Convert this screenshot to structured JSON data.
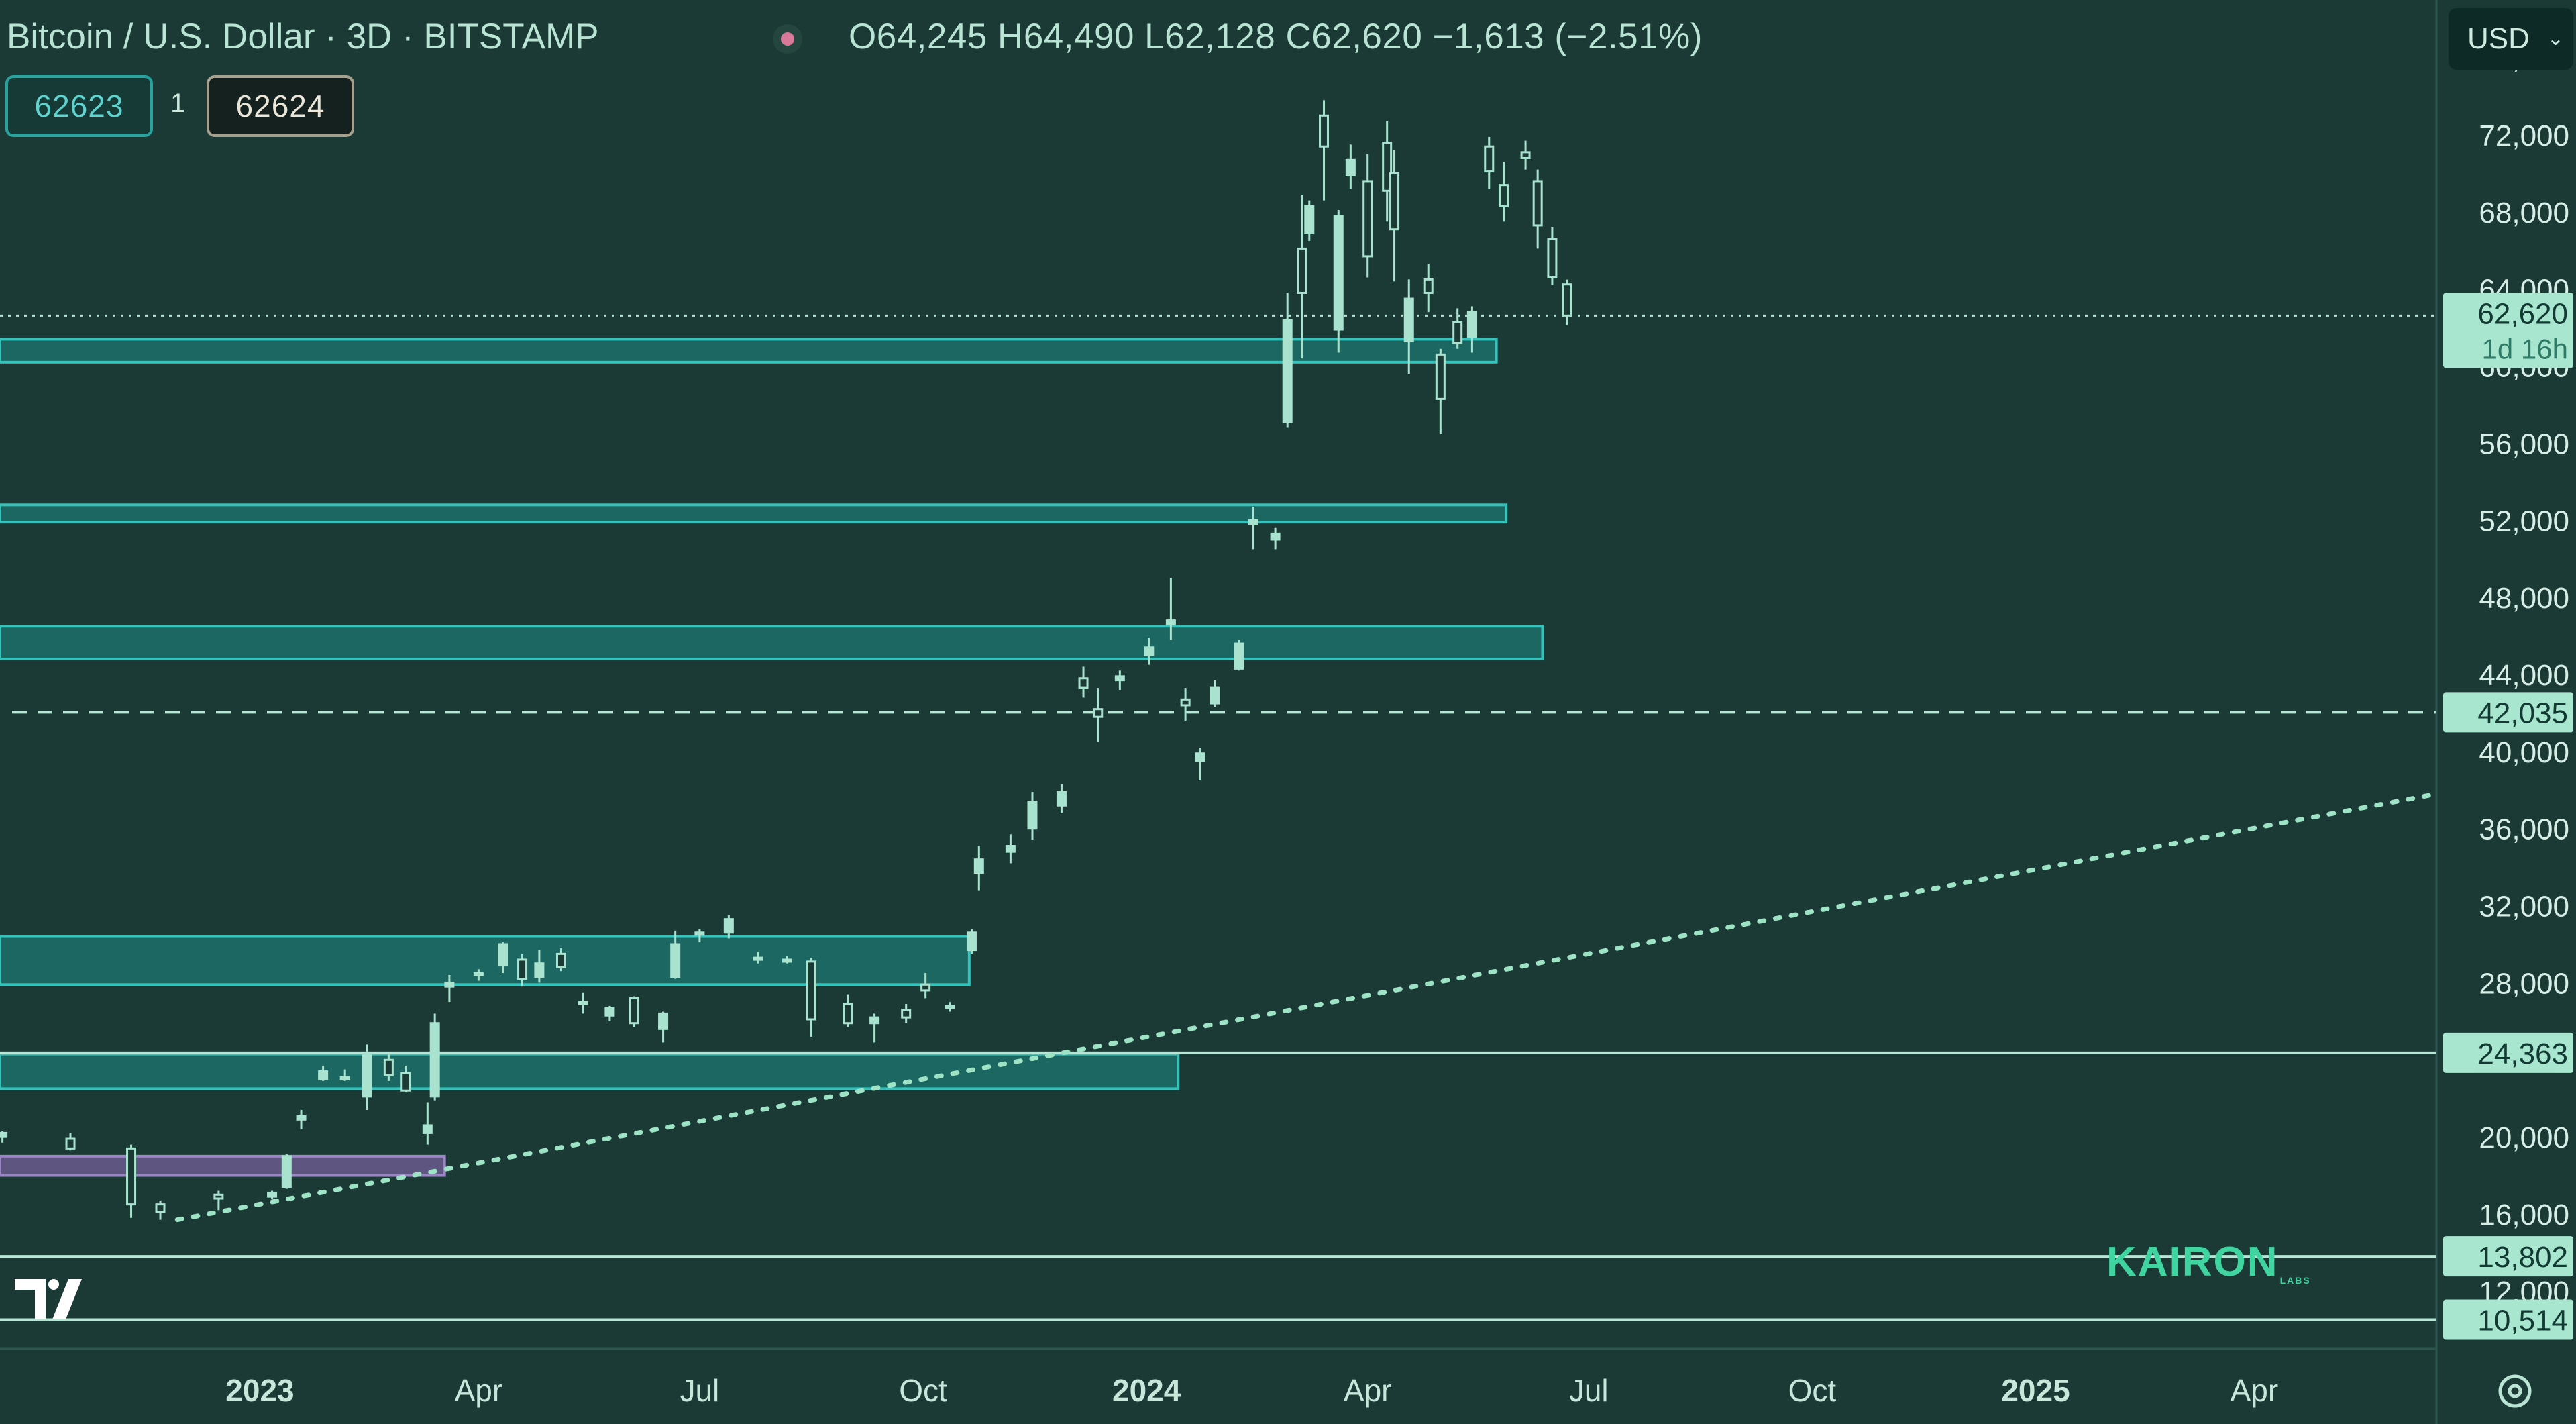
{
  "header": {
    "title": "Bitcoin / U.S. Dollar · 3D · BITSTAMP",
    "ohlc": "O64,245  H64,490  L62,128  C62,620  −1,613 (−2.51%)"
  },
  "trading": {
    "bid": "62623",
    "quantity": "1",
    "ask": "62624"
  },
  "currency": {
    "label": "USD",
    "icon": "chevron-down-icon"
  },
  "watermark": {
    "brand": "KAIRON",
    "sub": "LABS"
  },
  "icons": {
    "logo": "tradingview-logo",
    "settings": "gear-icon",
    "status": "status-dot-icon"
  },
  "colors": {
    "background": "#1b3a35",
    "candle": "#a9e3cf",
    "zone": "#1f8c86",
    "zone_border": "#35c2bb",
    "zone_purple": "#7a62a3",
    "line": "#b8e6d6",
    "trend": "#9ee3c6",
    "price_label_bg": "#a9e6cf",
    "price_label_text": "#123a33"
  },
  "chart_data": {
    "type": "candlestick",
    "title": "Bitcoin / U.S. Dollar · 3D · BITSTAMP",
    "y_scale": "linear",
    "ylim": [
      9000,
      79000
    ],
    "xlim": [
      "2022-09-16",
      "2025-06-15"
    ],
    "x_ticks": [
      {
        "date": "2023-01-01",
        "label": "2023",
        "bold": true
      },
      {
        "date": "2023-04-01",
        "label": "Apr"
      },
      {
        "date": "2023-07-01",
        "label": "Jul"
      },
      {
        "date": "2023-10-01",
        "label": "Oct"
      },
      {
        "date": "2024-01-01",
        "label": "2024",
        "bold": true
      },
      {
        "date": "2024-04-01",
        "label": "Apr"
      },
      {
        "date": "2024-07-01",
        "label": "Jul"
      },
      {
        "date": "2024-10-01",
        "label": "Oct"
      },
      {
        "date": "2025-01-01",
        "label": "2025",
        "bold": true
      },
      {
        "date": "2025-04-01",
        "label": "Apr"
      }
    ],
    "y_ticks": [
      {
        "value": 12000,
        "label": "12,000"
      },
      {
        "value": 16000,
        "label": "16,000"
      },
      {
        "value": 20000,
        "label": "20,000"
      },
      {
        "value": 28000,
        "label": "28,000"
      },
      {
        "value": 32000,
        "label": "32,000"
      },
      {
        "value": 36000,
        "label": "36,000"
      },
      {
        "value": 40000,
        "label": "40,000"
      },
      {
        "value": 44000,
        "label": "44,000"
      },
      {
        "value": 48000,
        "label": "48,000"
      },
      {
        "value": 52000,
        "label": "52,000"
      },
      {
        "value": 56000,
        "label": "56,000"
      },
      {
        "value": 60000,
        "label": "60,000"
      },
      {
        "value": 64000,
        "label": "64,000"
      },
      {
        "value": 68000,
        "label": "68,000"
      },
      {
        "value": 72000,
        "label": "72,000"
      },
      {
        "value": 76000,
        "label": "76,000"
      }
    ],
    "price_labels": [
      {
        "value": 62620,
        "label": "62,620",
        "sub": "1d 16h",
        "line": "dotted"
      },
      {
        "value": 42035,
        "label": "42,035",
        "line": "dashed"
      },
      {
        "value": 24363,
        "label": "24,363",
        "line": "solid"
      },
      {
        "value": 13802,
        "label": "13,802",
        "line": "solid"
      },
      {
        "value": 10514,
        "label": "10,514",
        "line": "solid"
      }
    ],
    "zones": [
      {
        "from": "2022-09-16",
        "to": "2024-05-24",
        "low": 60200,
        "high": 61400,
        "color": "teal"
      },
      {
        "from": "2022-09-16",
        "to": "2024-05-28",
        "low": 51900,
        "high": 52800,
        "color": "teal"
      },
      {
        "from": "2022-09-16",
        "to": "2024-06-12",
        "low": 44800,
        "high": 46500,
        "color": "teal"
      },
      {
        "from": "2022-09-16",
        "to": "2023-10-20",
        "low": 27900,
        "high": 30400,
        "color": "teal"
      },
      {
        "from": "2022-09-16",
        "to": "2024-01-14",
        "low": 22500,
        "high": 24300,
        "color": "teal"
      },
      {
        "from": "2022-09-16",
        "to": "2023-03-18",
        "low": 18000,
        "high": 19000,
        "color": "purple"
      }
    ],
    "trendline": {
      "from": {
        "date": "2022-11-28",
        "value": 15700
      },
      "to": {
        "date": "2025-06-15",
        "value": 37800
      },
      "style": "dotted"
    },
    "candles": [
      [
        "2022-09-17",
        20000,
        20300,
        19700,
        20200
      ],
      [
        "2022-10-15",
        19900,
        20200,
        19300,
        19400
      ],
      [
        "2022-11-09",
        19400,
        19600,
        15800,
        16500
      ],
      [
        "2022-11-21",
        16500,
        16700,
        15700,
        16100
      ],
      [
        "2022-12-15",
        17000,
        17200,
        16200,
        16800
      ],
      [
        "2023-01-06",
        16900,
        17200,
        16800,
        17100
      ],
      [
        "2023-01-12",
        17400,
        19100,
        17300,
        19000
      ],
      [
        "2023-01-18",
        20900,
        21400,
        20400,
        21100
      ],
      [
        "2023-01-27",
        23000,
        23700,
        22900,
        23400
      ],
      [
        "2023-02-05",
        23000,
        23500,
        22900,
        23100
      ],
      [
        "2023-02-14",
        22100,
        24800,
        21400,
        24300
      ],
      [
        "2023-02-23",
        24000,
        24300,
        22900,
        23200
      ],
      [
        "2023-03-02",
        23300,
        23700,
        22300,
        22400
      ],
      [
        "2023-03-11",
        20200,
        21800,
        19600,
        20600
      ],
      [
        "2023-03-14",
        22100,
        26400,
        21900,
        25900
      ],
      [
        "2023-03-20",
        27800,
        28400,
        27000,
        28000
      ],
      [
        "2023-04-01",
        28400,
        28700,
        28100,
        28500
      ],
      [
        "2023-04-11",
        28900,
        30100,
        28500,
        30000
      ],
      [
        "2023-04-19",
        29200,
        29500,
        27800,
        28200
      ],
      [
        "2023-04-26",
        28300,
        29700,
        28000,
        29000
      ],
      [
        "2023-05-05",
        29500,
        29800,
        28600,
        28800
      ],
      [
        "2023-05-14",
        27000,
        27500,
        26400,
        26900
      ],
      [
        "2023-05-25",
        26300,
        26800,
        26000,
        26700
      ],
      [
        "2023-06-04",
        27200,
        27300,
        25700,
        25900
      ],
      [
        "2023-06-16",
        25600,
        26500,
        24900,
        26400
      ],
      [
        "2023-06-21",
        28300,
        30700,
        28200,
        30000
      ],
      [
        "2023-07-01",
        30500,
        30800,
        30100,
        30600
      ],
      [
        "2023-07-13",
        30600,
        31500,
        30300,
        31300
      ],
      [
        "2023-07-25",
        29200,
        29600,
        29000,
        29300
      ],
      [
        "2023-08-06",
        29100,
        29400,
        29000,
        29200
      ],
      [
        "2023-08-16",
        29100,
        29300,
        25200,
        26100
      ],
      [
        "2023-08-31",
        26900,
        27400,
        25700,
        25900
      ],
      [
        "2023-09-11",
        25900,
        26400,
        24900,
        26200
      ],
      [
        "2023-09-24",
        26600,
        26900,
        25900,
        26200
      ],
      [
        "2023-10-02",
        27900,
        28500,
        27200,
        27600
      ],
      [
        "2023-10-12",
        26800,
        27000,
        26500,
        26800
      ],
      [
        "2023-10-21",
        29700,
        30800,
        29500,
        30600
      ],
      [
        "2023-10-24",
        33700,
        35100,
        32800,
        34400
      ],
      [
        "2023-11-06",
        34800,
        35700,
        34200,
        35100
      ],
      [
        "2023-11-15",
        36000,
        37900,
        35400,
        37400
      ],
      [
        "2023-11-27",
        37200,
        38300,
        36800,
        37900
      ],
      [
        "2023-12-06",
        43800,
        44400,
        42800,
        43300
      ],
      [
        "2023-12-12",
        42200,
        43300,
        40500,
        41800
      ],
      [
        "2023-12-21",
        43700,
        44200,
        43200,
        43900
      ],
      [
        "2024-01-02",
        45000,
        45900,
        44500,
        45400
      ],
      [
        "2024-01-11",
        46600,
        49000,
        45800,
        46800
      ],
      [
        "2024-01-17",
        42700,
        43300,
        41600,
        42400
      ],
      [
        "2024-01-23",
        39500,
        40200,
        38500,
        39900
      ],
      [
        "2024-01-29",
        42500,
        43700,
        42300,
        43300
      ],
      [
        "2024-02-08",
        44300,
        45800,
        44200,
        45600
      ],
      [
        "2024-02-14",
        51800,
        52700,
        50500,
        52000
      ],
      [
        "2024-02-23",
        51000,
        51600,
        50500,
        51300
      ],
      [
        "2024-02-28",
        57100,
        63800,
        56800,
        62400
      ],
      [
        "2024-03-05",
        66100,
        68900,
        60400,
        63800
      ],
      [
        "2024-03-08",
        66900,
        68600,
        66500,
        68300
      ],
      [
        "2024-03-14",
        73000,
        73800,
        68600,
        71400
      ],
      [
        "2024-03-20",
        61900,
        68100,
        60700,
        67800
      ],
      [
        "2024-03-25",
        69900,
        71500,
        69200,
        70700
      ],
      [
        "2024-04-01",
        69600,
        71000,
        64600,
        65700
      ],
      [
        "2024-04-09",
        71600,
        72700,
        67500,
        69100
      ],
      [
        "2024-04-12",
        70000,
        71200,
        64400,
        67100
      ],
      [
        "2024-04-18",
        61300,
        64500,
        59600,
        63500
      ],
      [
        "2024-04-26",
        64500,
        65300,
        62800,
        63800
      ],
      [
        "2024-05-01",
        60600,
        60900,
        56500,
        58300
      ],
      [
        "2024-05-08",
        62300,
        63000,
        60900,
        61200
      ],
      [
        "2024-05-14",
        61500,
        63100,
        60700,
        62800
      ],
      [
        "2024-05-21",
        71400,
        71900,
        69200,
        70100
      ],
      [
        "2024-05-27",
        69400,
        70600,
        67500,
        68300
      ],
      [
        "2024-06-05",
        71100,
        71700,
        70200,
        70800
      ],
      [
        "2024-06-10",
        69600,
        70200,
        66100,
        67300
      ],
      [
        "2024-06-16",
        66600,
        67200,
        64200,
        64600
      ],
      [
        "2024-06-22",
        64245,
        64490,
        62128,
        62620
      ]
    ]
  }
}
